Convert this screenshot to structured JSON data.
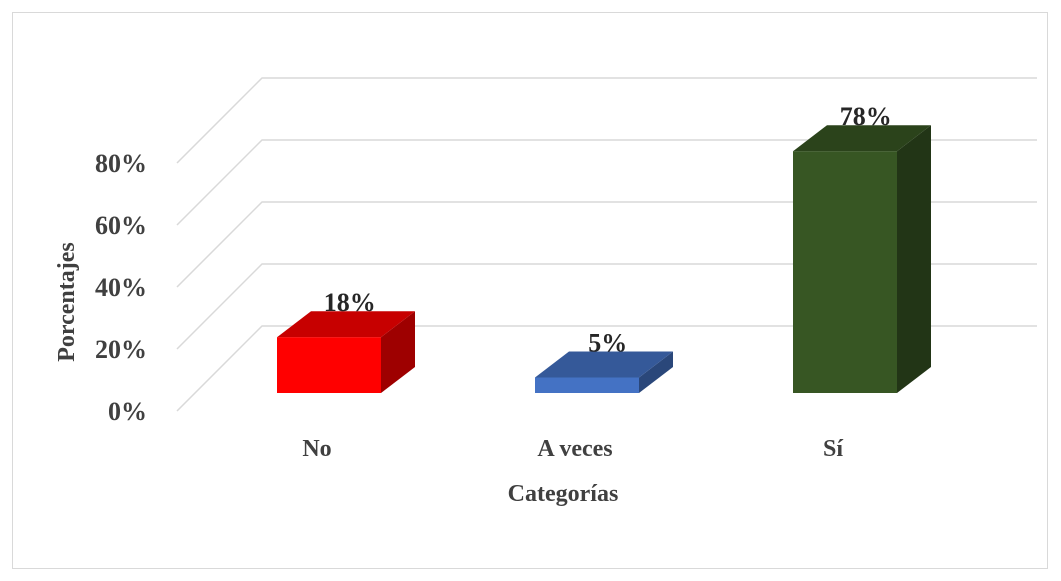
{
  "chart_data": {
    "type": "bar",
    "style": "3d-column",
    "categories": [
      "No",
      "A veces",
      "Sí"
    ],
    "values": [
      18,
      5,
      78
    ],
    "data_labels": [
      "18%",
      "5%",
      "78%"
    ],
    "colors": {
      "No": "#ff0000",
      "A veces": "#4472c4",
      "Sí": "#375623"
    },
    "y_ticks": [
      0,
      20,
      40,
      60,
      80
    ],
    "y_tick_labels": [
      "0%",
      "20%",
      "40%",
      "60%",
      "80%"
    ],
    "ylim": [
      0,
      80
    ],
    "xlabel": "Categorías",
    "ylabel": "Porcentajes",
    "grid": true,
    "legend": "none"
  }
}
